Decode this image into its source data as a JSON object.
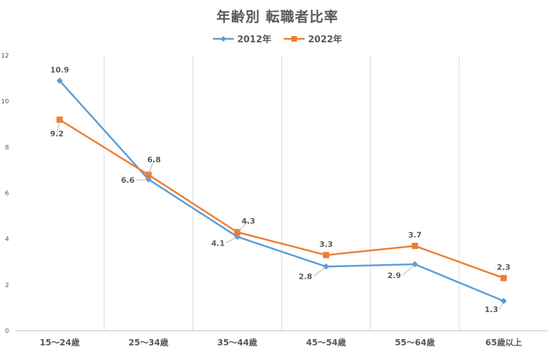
{
  "chart_data": {
    "type": "line",
    "title": "年齢別 転職者比率",
    "categories": [
      "15～24歳",
      "25～34歳",
      "35～44歳",
      "45～54歳",
      "55～64歳",
      "65歳以上"
    ],
    "series": [
      {
        "name": "2012年",
        "values": [
          10.9,
          6.6,
          4.1,
          2.8,
          2.9,
          1.3
        ],
        "color": "#5B9BD5",
        "marker": "diamond",
        "labels": [
          "10.9",
          "6.6",
          "4.1",
          "2.8",
          "2.9",
          "1.3"
        ]
      },
      {
        "name": "2022年",
        "values": [
          9.2,
          6.8,
          4.3,
          3.3,
          3.7,
          2.3
        ],
        "color": "#ED7D31",
        "marker": "square",
        "labels": [
          "9.2",
          "6.8",
          "4.3",
          "3.3",
          "3.7",
          "2.3"
        ]
      }
    ],
    "yticks": [
      "0",
      "2",
      "4",
      "6",
      "8",
      "10",
      "12"
    ],
    "ylim": [
      0,
      12
    ],
    "grid": "vertical",
    "legend": "top-center"
  }
}
